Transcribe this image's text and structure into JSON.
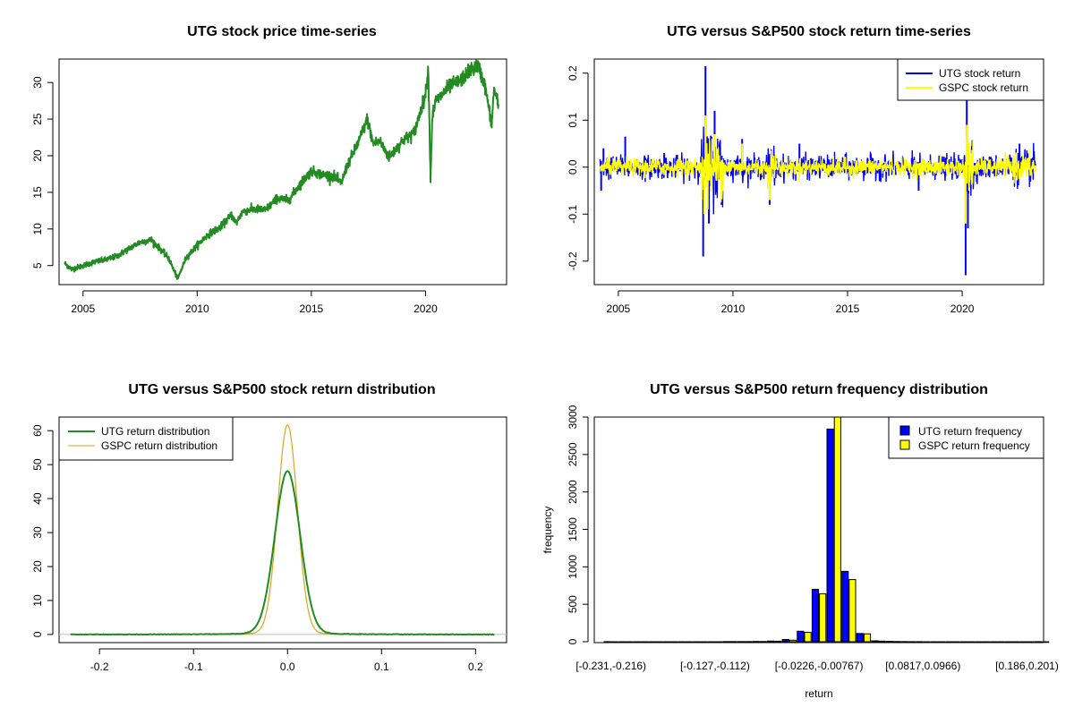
{
  "chart_data": [
    {
      "id": "price",
      "type": "line",
      "title": "UTG stock price time-series",
      "xlabel": "",
      "ylabel": "",
      "xlim": [
        2003.95,
        2023.55
      ],
      "ylim": [
        2.4,
        33.2
      ],
      "xticks": [
        2005,
        2010,
        2015,
        2020
      ],
      "yticks": [
        5,
        10,
        15,
        20,
        25,
        30
      ],
      "color": "#228b22",
      "series": [
        {
          "anchors_x": [
            2004.2,
            2004.5,
            2005.0,
            2005.5,
            2006.0,
            2006.5,
            2007.0,
            2007.5,
            2008.0,
            2008.4,
            2008.75,
            2009.0,
            2009.15,
            2009.5,
            2010.0,
            2010.5,
            2011.0,
            2011.5,
            2011.7,
            2012.0,
            2012.5,
            2013.0,
            2013.5,
            2014.0,
            2014.5,
            2015.0,
            2015.5,
            2016.0,
            2016.3,
            2016.6,
            2017.0,
            2017.45,
            2017.7,
            2018.0,
            2018.4,
            2018.6,
            2019.0,
            2019.5,
            2020.0,
            2020.12,
            2020.22,
            2020.3,
            2020.45,
            2020.7,
            2021.0,
            2021.5,
            2022.0,
            2022.3,
            2022.6,
            2022.9,
            2023.0,
            2023.2
          ],
          "anchors_y": [
            5.3,
            4.5,
            5.0,
            5.5,
            5.8,
            6.3,
            7.3,
            8.2,
            8.5,
            7.2,
            6.0,
            4.2,
            3.2,
            6.0,
            7.8,
            9.3,
            10.2,
            11.9,
            10.8,
            12.4,
            12.7,
            12.6,
            14.2,
            13.9,
            16.1,
            17.9,
            17.4,
            17.2,
            16.2,
            18.9,
            21.4,
            25.0,
            21.7,
            22.0,
            19.8,
            20.5,
            22.1,
            23.1,
            28.4,
            32.0,
            17.0,
            25.5,
            27.5,
            28.2,
            29.4,
            30.2,
            31.8,
            32.3,
            29.6,
            24.3,
            29.2,
            26.8
          ]
        }
      ]
    },
    {
      "id": "returns_ts",
      "type": "line",
      "title": "UTG versus S&P500 stock return time-series",
      "xlabel": "",
      "ylabel": "",
      "xlim": [
        2003.95,
        2023.55
      ],
      "ylim": [
        -0.25,
        0.23
      ],
      "xticks": [
        2005,
        2010,
        2015,
        2020
      ],
      "yticks": [
        -0.2,
        -0.1,
        0.0,
        0.1,
        0.2
      ],
      "legend": "top-right",
      "series": [
        {
          "name": "UTG stock return",
          "color": "#0000ff"
        },
        {
          "name": "GSPC stock return",
          "color": "#ffff00"
        }
      ],
      "spikes": {
        "utg": [
          [
            2004.25,
            -0.05
          ],
          [
            2004.35,
            0.04
          ],
          [
            2005.3,
            0.065
          ],
          [
            2007.0,
            0.03
          ],
          [
            2008.7,
            -0.19
          ],
          [
            2008.8,
            0.215
          ],
          [
            2008.95,
            -0.12
          ],
          [
            2009.2,
            0.12
          ],
          [
            2009.5,
            -0.08
          ],
          [
            2010.4,
            0.06
          ],
          [
            2011.6,
            -0.08
          ],
          [
            2012.9,
            0.05
          ],
          [
            2018.1,
            -0.05
          ],
          [
            2020.15,
            -0.23
          ],
          [
            2020.2,
            0.145
          ],
          [
            2020.25,
            -0.13
          ],
          [
            2022.5,
            0.05
          ]
        ],
        "gspc": [
          [
            2008.75,
            -0.1
          ],
          [
            2008.8,
            0.11
          ],
          [
            2008.9,
            -0.09
          ],
          [
            2009.2,
            0.07
          ],
          [
            2010.4,
            0.05
          ],
          [
            2011.6,
            -0.07
          ],
          [
            2020.15,
            -0.12
          ],
          [
            2020.2,
            0.09
          ],
          [
            2020.3,
            -0.05
          ]
        ]
      }
    },
    {
      "id": "density",
      "type": "line",
      "title": "UTG versus S&P500 stock return distribution",
      "xlabel": "",
      "ylabel": "",
      "xlim": [
        -0.243,
        0.233
      ],
      "ylim": [
        -2.4,
        64
      ],
      "xticks": [
        -0.2,
        -0.1,
        0.0,
        0.1,
        0.2
      ],
      "yticks": [
        0,
        10,
        20,
        30,
        40,
        50,
        60
      ],
      "legend": "top-left",
      "series": [
        {
          "name": "UTG return distribution",
          "color": "#228b22",
          "peak": 47.5,
          "sigma": 0.0135,
          "support": [
            -0.231,
            0.22
          ]
        },
        {
          "name": "GSPC return distribution",
          "color": "#daa520",
          "peak": 61.0,
          "sigma": 0.0105,
          "support": [
            -0.12,
            0.115
          ]
        }
      ]
    },
    {
      "id": "hist",
      "type": "bar",
      "title": "UTG versus S&P500 return frequency distribution",
      "xlabel": "return",
      "ylabel": "frequency",
      "ylim": [
        0,
        3000
      ],
      "yticks": [
        0,
        500,
        1000,
        1500,
        2000,
        2500,
        3000
      ],
      "xtick_labels": [
        "[-0.231,-0.216)",
        "[-0.127,-0.112)",
        "[-0.0226,-0.00767)",
        "[0.0817,0.0966)",
        "[0.186,0.201)"
      ],
      "xtick_bins": [
        0,
        7,
        14,
        21,
        28
      ],
      "legend": "top-right",
      "series": [
        {
          "name": "UTG return frequency",
          "color": "#0000ff",
          "values": [
            1,
            0,
            0,
            0,
            0,
            0,
            0,
            0,
            2,
            2,
            4,
            9,
            30,
            140,
            700,
            2840,
            940,
            110,
            12,
            5,
            2,
            1,
            0,
            0,
            0,
            0,
            0,
            0,
            0,
            1
          ]
        },
        {
          "name": "GSPC return frequency",
          "color": "#ffff00",
          "values": [
            0,
            0,
            0,
            0,
            0,
            0,
            0,
            0,
            2,
            2,
            3,
            7,
            20,
            125,
            640,
            3000,
            830,
            105,
            8,
            3,
            1,
            0,
            0,
            0,
            0,
            0,
            0,
            0,
            0,
            0
          ]
        }
      ]
    }
  ]
}
